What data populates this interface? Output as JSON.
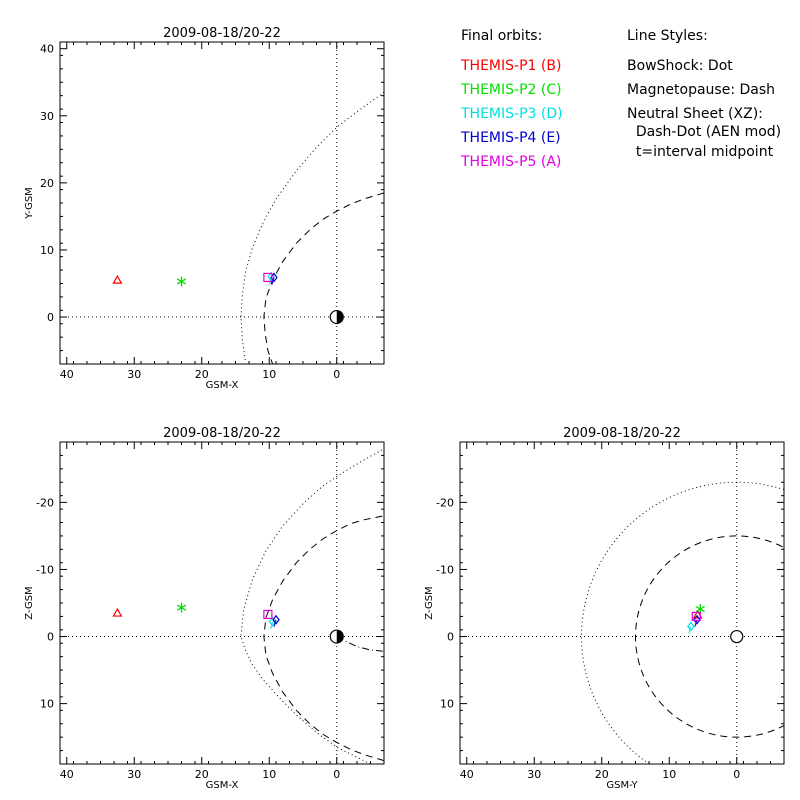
{
  "legend": {
    "orbits_title": "Final orbits:",
    "probes": [
      {
        "label": "THEMIS-P1 (B)",
        "color": "#ff0000"
      },
      {
        "label": "THEMIS-P2 (C)",
        "color": "#00e000"
      },
      {
        "label": "THEMIS-P3 (D)",
        "color": "#00e0e0"
      },
      {
        "label": "THEMIS-P4 (E)",
        "color": "#0000cc"
      },
      {
        "label": "THEMIS-P5 (A)",
        "color": "#e000e0"
      }
    ],
    "styles_title": "Line Styles:",
    "styles": [
      "BowShock: Dot",
      "Magnetopause: Dash",
      "Neutral Sheet (XZ):",
      "  Dash-Dot (AEN mod)",
      "  t=interval midpoint"
    ]
  },
  "chart_data": [
    {
      "id": "xy",
      "type": "scatter",
      "title": "2009-08-18/20-22",
      "xlabel": "GSM-X",
      "ylabel": "Y-GSM",
      "xlim": [
        41,
        -7
      ],
      "ylim": [
        41,
        -7
      ],
      "xticks": [
        40,
        30,
        20,
        10,
        0
      ],
      "yticks": [
        0,
        10,
        20,
        30,
        40
      ],
      "probes": [
        {
          "probe": "THEMIS-P1 (B)",
          "marker": "triangle",
          "x": 32.5,
          "y": 5.5
        },
        {
          "probe": "THEMIS-P2 (C)",
          "marker": "asterisk",
          "x": 23.0,
          "y": 5.3
        },
        {
          "probe": "THEMIS-P3 (D)",
          "marker": "diamond",
          "x": 9.7,
          "y": 6.0
        },
        {
          "probe": "THEMIS-P4 (E)",
          "marker": "diamond",
          "x": 9.3,
          "y": 5.9
        },
        {
          "probe": "THEMIS-P5 (A)",
          "marker": "square",
          "x": 10.2,
          "y": 5.9
        }
      ],
      "boundaries": [
        {
          "name": "BowShock",
          "style": "dot",
          "points": [
            [
              -7,
              33.5
            ],
            [
              -3,
              30.6
            ],
            [
              0,
              28.3
            ],
            [
              3,
              25.3
            ],
            [
              6,
              21.8
            ],
            [
              9,
              17.6
            ],
            [
              11,
              13.9
            ],
            [
              12.5,
              10.3
            ],
            [
              13.5,
              6.8
            ],
            [
              14,
              3.3
            ],
            [
              14.2,
              0
            ],
            [
              14,
              -3.3
            ],
            [
              13.5,
              -6.8
            ]
          ]
        },
        {
          "name": "Magnetopause",
          "style": "dash",
          "points": [
            [
              -7,
              18.5
            ],
            [
              -4,
              17.6
            ],
            [
              -2,
              16.8
            ],
            [
              0,
              15.8
            ],
            [
              2,
              14.6
            ],
            [
              4,
              13.0
            ],
            [
              6,
              11.0
            ],
            [
              8,
              8.3
            ],
            [
              9.5,
              5.5
            ],
            [
              10.5,
              2.8
            ],
            [
              10.8,
              0
            ],
            [
              10.6,
              -2.5
            ],
            [
              10.2,
              -5
            ],
            [
              9.5,
              -7
            ]
          ]
        }
      ]
    },
    {
      "id": "xz",
      "type": "scatter",
      "title": "2009-08-18/20-22",
      "xlabel": "GSM-X",
      "ylabel": "Z-GSM",
      "xlim": [
        41,
        -7
      ],
      "ylim": [
        -29,
        19
      ],
      "xticks": [
        40,
        30,
        20,
        10,
        0
      ],
      "yticks": [
        10,
        0,
        -10,
        -20
      ],
      "probes": [
        {
          "probe": "THEMIS-P1 (B)",
          "marker": "triangle",
          "x": 32.5,
          "y": -3.5
        },
        {
          "probe": "THEMIS-P2 (C)",
          "marker": "asterisk",
          "x": 23.0,
          "y": -4.3
        },
        {
          "probe": "THEMIS-P3 (D)",
          "marker": "diamond",
          "x": 9.5,
          "y": -2.2
        },
        {
          "probe": "THEMIS-P4 (E)",
          "marker": "diamond",
          "x": 9.0,
          "y": -2.5
        },
        {
          "probe": "THEMIS-P5 (A)",
          "marker": "square",
          "x": 10.2,
          "y": -3.3
        }
      ],
      "boundaries": [
        {
          "name": "BowShock",
          "style": "dot",
          "points": [
            [
              -5,
              19
            ],
            [
              -3,
              18
            ],
            [
              0,
              16.5
            ],
            [
              3,
              14.3
            ],
            [
              6,
              11.7
            ],
            [
              9,
              8.6
            ],
            [
              11,
              6.3
            ],
            [
              12.5,
              4.2
            ],
            [
              13.5,
              2.1
            ],
            [
              14.2,
              0
            ],
            [
              13.8,
              -4
            ],
            [
              12.5,
              -8.5
            ],
            [
              10.5,
              -12.8
            ],
            [
              8,
              -16.5
            ],
            [
              5,
              -19.8
            ],
            [
              2,
              -22.5
            ],
            [
              -1,
              -24.5
            ],
            [
              -4,
              -26.3
            ],
            [
              -7,
              -28
            ]
          ]
        },
        {
          "name": "Magnetopause",
          "style": "dash",
          "points": [
            [
              -7,
              18.5
            ],
            [
              -4,
              17.6
            ],
            [
              -2,
              16.8
            ],
            [
              0,
              15.8
            ],
            [
              2,
              14.6
            ],
            [
              4,
              13.0
            ],
            [
              6,
              11.0
            ],
            [
              8,
              8.3
            ],
            [
              9.5,
              5.5
            ],
            [
              10.5,
              2.8
            ],
            [
              10.8,
              0
            ],
            [
              10.5,
              -2.8
            ],
            [
              9.5,
              -5.5
            ],
            [
              8,
              -8.3
            ],
            [
              6,
              -11
            ],
            [
              4,
              -13
            ],
            [
              2,
              -14.6
            ],
            [
              0,
              -15.8
            ],
            [
              -2,
              -16.8
            ],
            [
              -4,
              -17.4
            ],
            [
              -7,
              -18
            ]
          ]
        },
        {
          "name": "NeutralSheet",
          "style": "dash-dot",
          "points": [
            [
              0,
              0
            ],
            [
              -1.5,
              0.8
            ],
            [
              -3,
              1.5
            ],
            [
              -5,
              2.0
            ],
            [
              -7,
              2.2
            ]
          ]
        }
      ]
    },
    {
      "id": "yz",
      "type": "scatter",
      "title": "2009-08-18/20-22",
      "xlabel": "GSM-Y",
      "ylabel": "Z-GSM",
      "xlim": [
        41,
        -7
      ],
      "ylim": [
        -29,
        19
      ],
      "xticks": [
        40,
        30,
        20,
        10,
        0
      ],
      "yticks": [
        10,
        0,
        -10,
        -20
      ],
      "probes": [
        {
          "probe": "THEMIS-P1 (B)",
          "marker": "triangle",
          "x": 5.8,
          "y": -3.2
        },
        {
          "probe": "THEMIS-P2 (C)",
          "marker": "asterisk",
          "x": 5.4,
          "y": -4.1
        },
        {
          "probe": "THEMIS-P3 (D)",
          "marker": "diamond",
          "x": 6.8,
          "y": -1.5
        },
        {
          "probe": "THEMIS-P4 (E)",
          "marker": "diamond",
          "x": 5.9,
          "y": -2.5
        },
        {
          "probe": "THEMIS-P5 (A)",
          "marker": "square",
          "x": 6.0,
          "y": -3.0
        }
      ],
      "circles": [
        {
          "name": "BowShock",
          "style": "dot",
          "radius": 23
        },
        {
          "name": "Magnetopause",
          "style": "dash",
          "radius": 15
        }
      ]
    }
  ]
}
